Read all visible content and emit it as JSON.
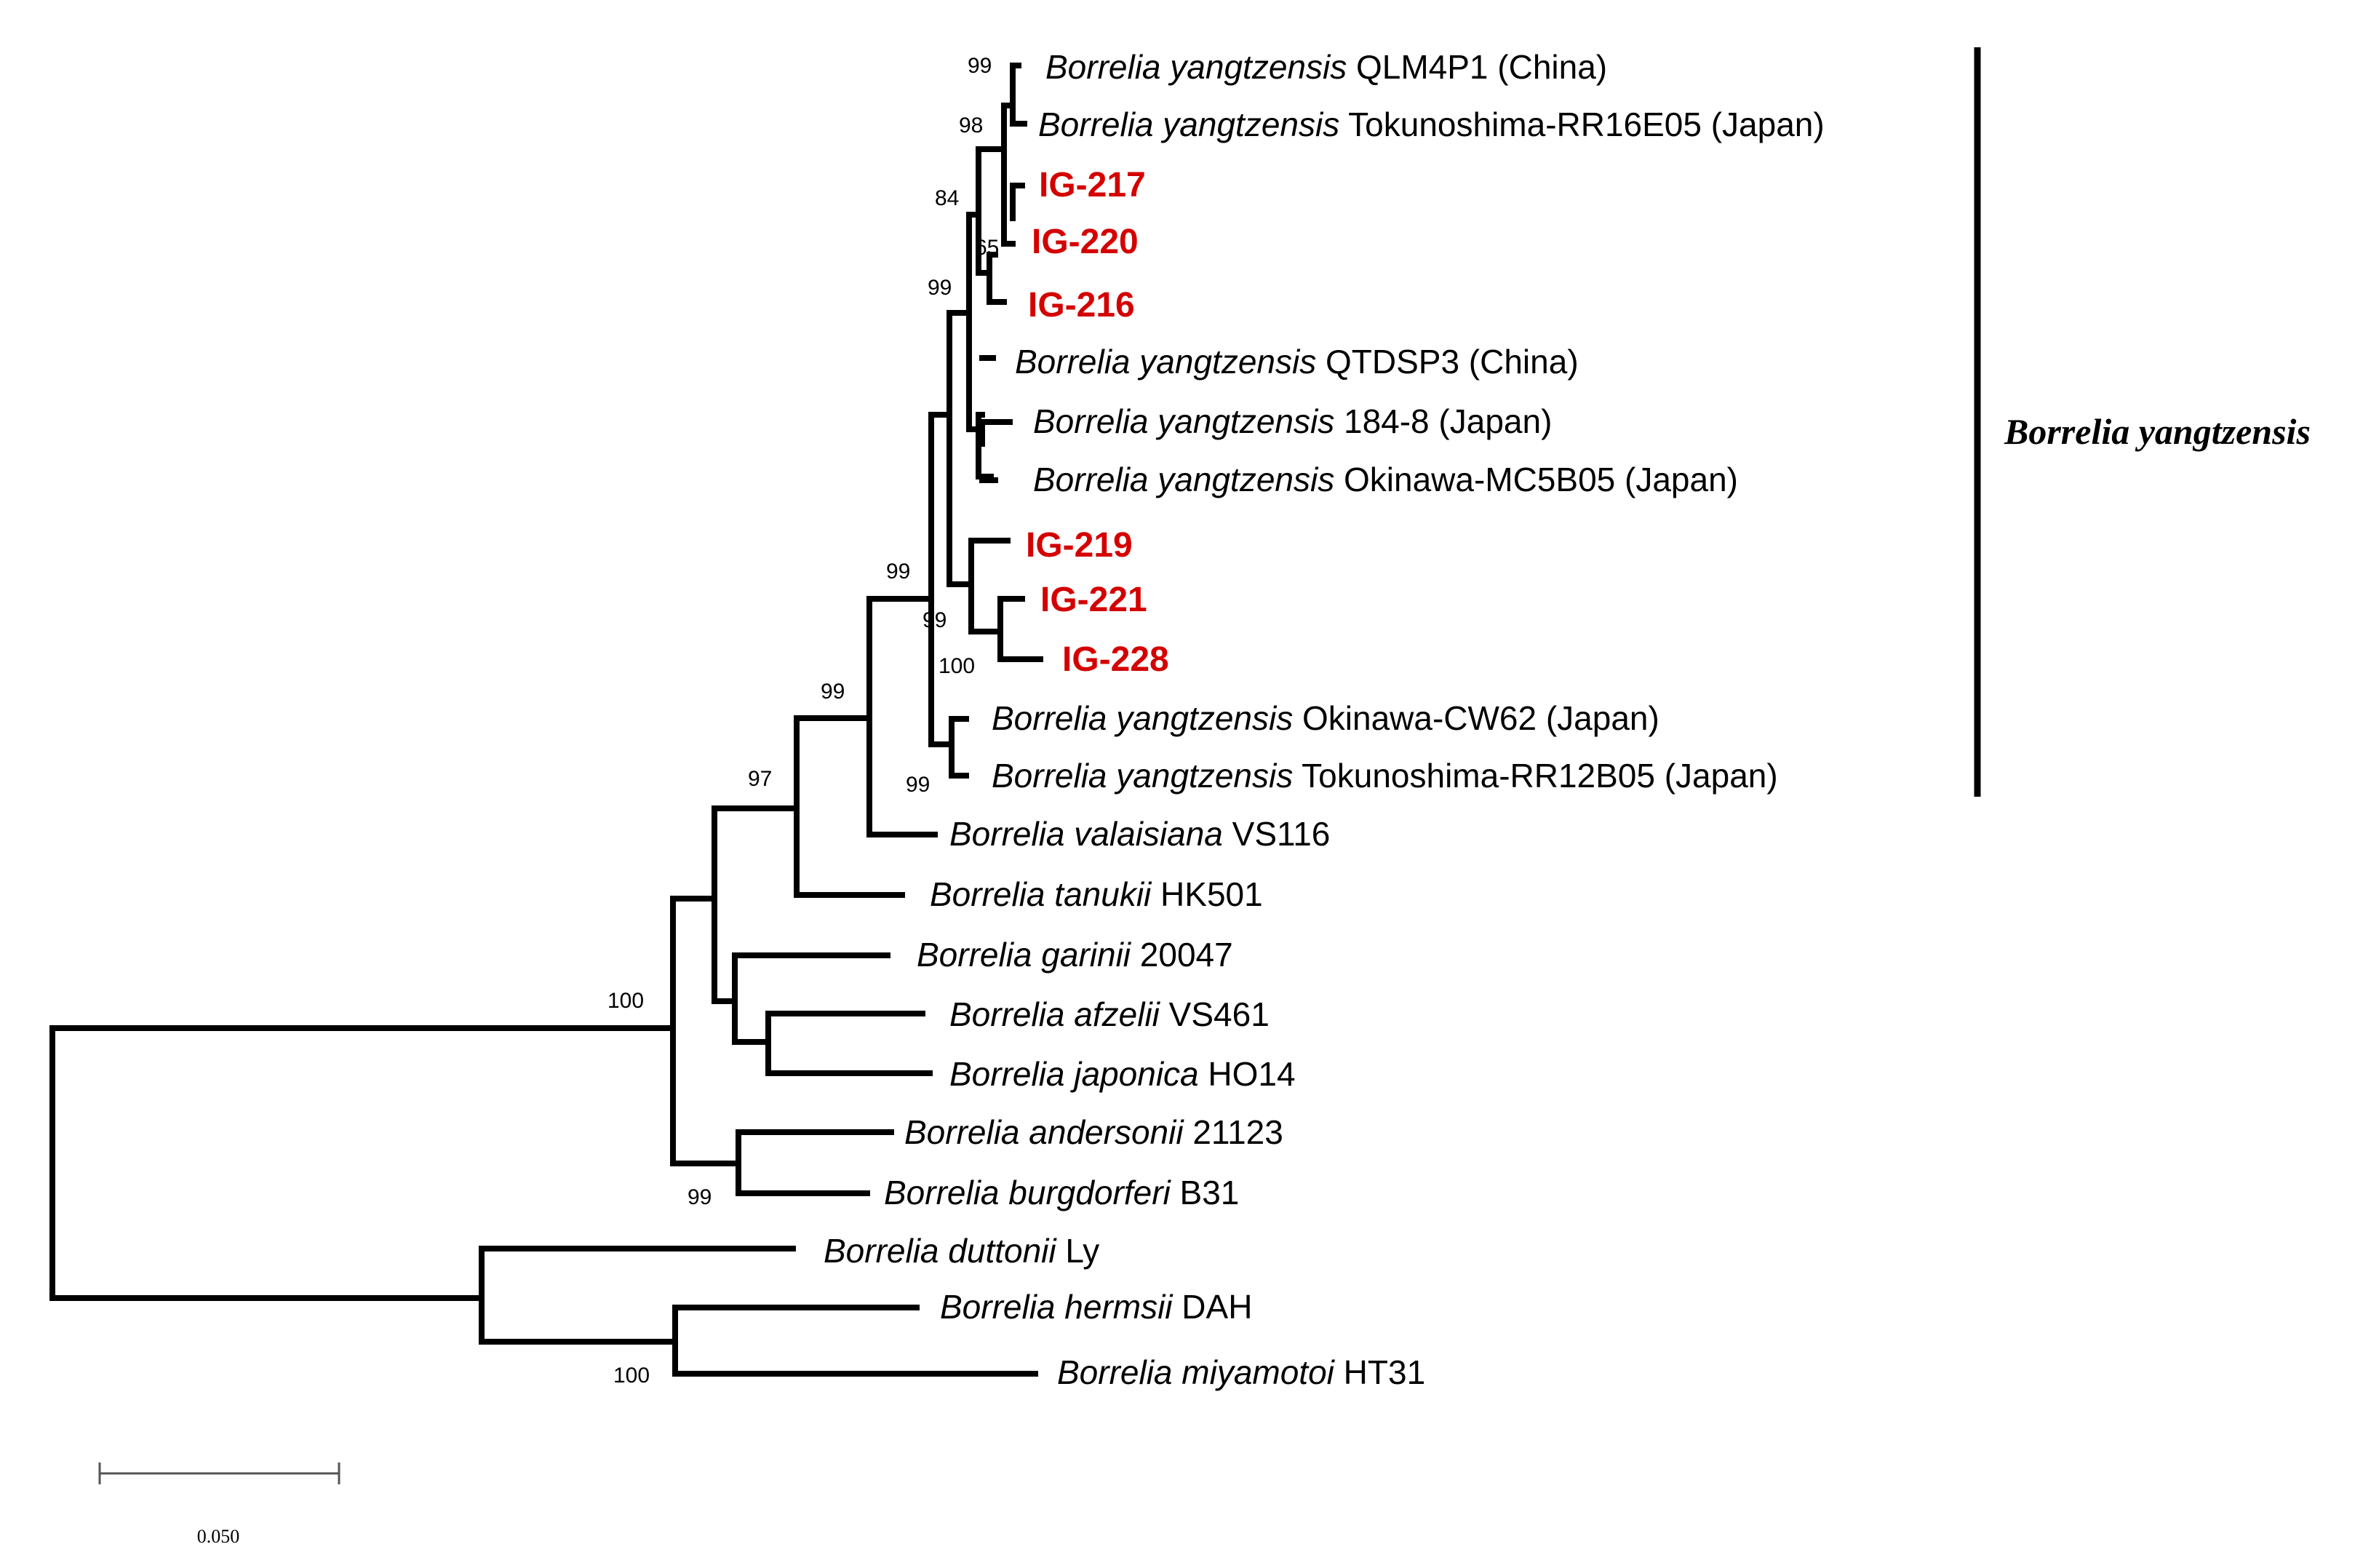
{
  "figure": "phylogenetic tree",
  "highlight_color": "#d40000",
  "taxa": [
    {
      "id": "qlm4p1",
      "species": "Borrelia yangtzensis",
      "strain": "QLM4P1 (China)"
    },
    {
      "id": "rr16e05",
      "species": "Borrelia yangtzensis",
      "strain": "Tokunoshima-RR16E05 (Japan)"
    },
    {
      "id": "ig217",
      "label": "IG-217"
    },
    {
      "id": "ig220",
      "label": "IG-220"
    },
    {
      "id": "ig216",
      "label": "IG-216"
    },
    {
      "id": "qtdsp3",
      "species": "Borrelia yangtzensis",
      "strain": "QTDSP3 (China)"
    },
    {
      "id": "b1848",
      "species": "Borrelia yangtzensis",
      "strain": "184-8 (Japan)"
    },
    {
      "id": "mc5b05",
      "species": "Borrelia yangtzensis",
      "strain": "Okinawa-MC5B05 (Japan)"
    },
    {
      "id": "ig219",
      "label": "IG-219"
    },
    {
      "id": "ig221",
      "label": "IG-221"
    },
    {
      "id": "ig228",
      "label": "IG-228"
    },
    {
      "id": "cw62",
      "species": "Borrelia yangtzensis",
      "strain": "Okinawa-CW62 (Japan)"
    },
    {
      "id": "rr12b05",
      "species": "Borrelia yangtzensis",
      "strain": "Tokunoshima-RR12B05 (Japan)"
    },
    {
      "id": "valaisiana",
      "species": "Borrelia valaisiana",
      "strain": "VS116"
    },
    {
      "id": "tanukii",
      "species": "Borrelia tanukii",
      "strain": "HK501"
    },
    {
      "id": "garinii",
      "species": "Borrelia garinii",
      "strain": "20047"
    },
    {
      "id": "afzelii",
      "species": "Borrelia afzelii",
      "strain": "VS461"
    },
    {
      "id": "japonica",
      "species": "Borrelia japonica",
      "strain": "HO14"
    },
    {
      "id": "andersonii",
      "species": "Borrelia andersonii",
      "strain": "21123"
    },
    {
      "id": "burgdorferi",
      "species": "Borrelia burgdorferi",
      "strain": "B31"
    },
    {
      "id": "duttonii",
      "species": "Borrelia duttonii",
      "strain": "Ly"
    },
    {
      "id": "hermsii",
      "species": "Borrelia hermsii",
      "strain": "DAH"
    },
    {
      "id": "miyamotoi",
      "species": "Borrelia miyamotoi",
      "strain": "HT31"
    }
  ],
  "bootstrap": {
    "qlm4p1_group": "99",
    "rr16e05_group": "98",
    "ig_cluster": "84",
    "ig220_group": "65",
    "upper_clade": "99",
    "yangtzensis_clade": "99",
    "ig219_group": "99",
    "ig221_ig228": "100",
    "cw62_rr12b05": "99",
    "valaisiana_group": "99",
    "tanukii_group": "97",
    "lyme_group": "100",
    "andersonii_burgdorferi": "99",
    "relapsing_fever": "100"
  },
  "clade_label": "Borrelia yangtzensis",
  "scale_bar": {
    "value": 0.05,
    "label": "0.050"
  }
}
